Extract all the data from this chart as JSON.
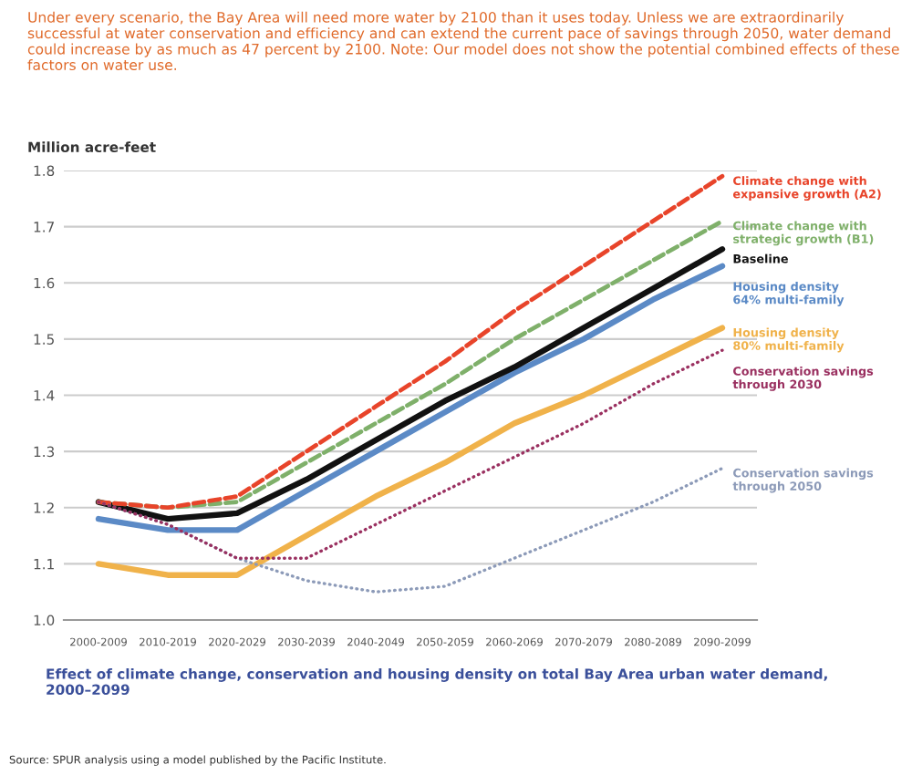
{
  "chart_data": {
    "type": "line",
    "title": "Under every scenario, the Bay Area will need more water by 2100 than it uses today. Unless we are extraordinarily successful at water conservation and efficiency and can extend the current pace of savings through 2050, water demand could increase by as much as 47 percent by 2100. Note: Our model does not show the potential combined effects of these factors on water use.",
    "ylabel": "Million acre-feet",
    "annotations": [
      "Effect of climate change, conservation and housing density on total Bay Area urban water demand, 2000–2099",
      "Source: SPUR analysis using a model published by the Pacific Institute."
    ],
    "categories": [
      "2000-2009",
      "2010-2019",
      "2020-2029",
      "2030-2039",
      "2040-2049",
      "2050-2059",
      "2060-2069",
      "2070-2079",
      "2080-2089",
      "2090-2099"
    ],
    "ylim": [
      1.0,
      1.8
    ],
    "yticks": [
      {
        "value": 1.0,
        "label": "1.0"
      },
      1.1,
      1.2,
      1.3,
      1.4,
      1.5,
      1.6,
      1.7,
      1.8
    ],
    "grid": "y",
    "legend": false,
    "series": [
      {
        "name": "Climate change with\nexpansive growth (A2)",
        "color": "#e8442a",
        "line_style": "dashed",
        "values": [
          1.21,
          1.2,
          1.22,
          1.3,
          1.38,
          1.46,
          1.55,
          1.63,
          1.71,
          1.79
        ]
      },
      {
        "name": "Climate change with\nstrategic growth (B1)",
        "color": "#7fb06a",
        "line_style": "dashed",
        "values": [
          1.21,
          1.2,
          1.21,
          1.28,
          1.35,
          1.42,
          1.5,
          1.57,
          1.64,
          1.71
        ]
      },
      {
        "name": "Baseline",
        "color": "#111111",
        "line_style": "solid",
        "values": [
          1.21,
          1.18,
          1.19,
          1.25,
          1.32,
          1.39,
          1.45,
          1.52,
          1.59,
          1.66
        ]
      },
      {
        "name": "Housing density\n64% multi-family",
        "color": "#5b8ac6",
        "line_style": "solid",
        "values": [
          1.18,
          1.16,
          1.16,
          1.23,
          1.3,
          1.37,
          1.44,
          1.5,
          1.57,
          1.63
        ]
      },
      {
        "name": "Housing density\n80% multi-family",
        "color": "#f0b24a",
        "line_style": "solid",
        "values": [
          1.1,
          1.08,
          1.08,
          1.15,
          1.22,
          1.28,
          1.35,
          1.4,
          1.46,
          1.52
        ]
      },
      {
        "name": "Conservation savings\nthrough 2030",
        "color": "#9a3060",
        "line_style": "dotted",
        "values": [
          1.21,
          1.17,
          1.11,
          1.11,
          1.17,
          1.23,
          1.29,
          1.35,
          1.42,
          1.48
        ]
      },
      {
        "name": "Conservation savings\nthrough 2050",
        "color": "#8c9ab8",
        "line_style": "dotted",
        "values": [
          1.21,
          1.17,
          1.11,
          1.07,
          1.05,
          1.06,
          1.11,
          1.16,
          1.21,
          1.27
        ]
      }
    ]
  }
}
